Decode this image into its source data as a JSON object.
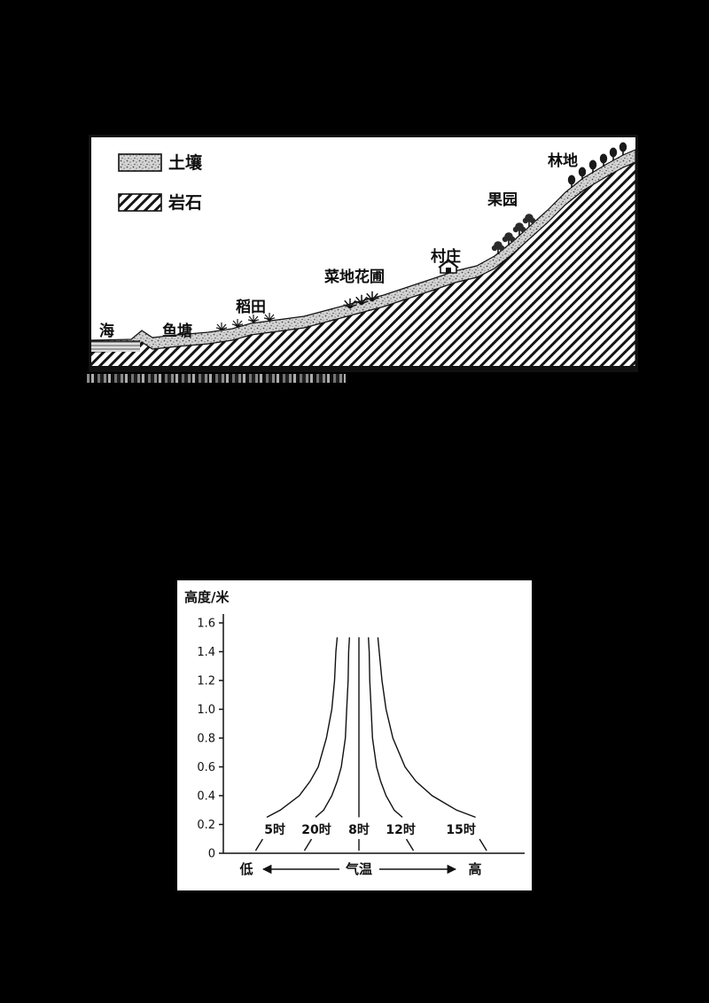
{
  "page": {
    "background": "#000000"
  },
  "land_use_diagram": {
    "legend": {
      "soil": "土壤",
      "rock": "岩石"
    },
    "labels": {
      "sea": "海",
      "fish_pond": "鱼塘",
      "rice_paddy": "稻田",
      "vegetable_flower_garden": "菜地花圃",
      "village": "村庄",
      "orchard": "果园",
      "forest": "林地"
    }
  },
  "chart_data": {
    "type": "line",
    "ylabel": "高度/米",
    "xlabel": "气温",
    "ylim": [
      0,
      1.6
    ],
    "grid": false,
    "y_ticks": [
      "0",
      "0.2",
      "0.4",
      "0.6",
      "0.8",
      "1.0",
      "1.2",
      "1.4",
      "1.6"
    ],
    "x_axis": {
      "left_label": "低",
      "center_label": "气温",
      "right_label": "高",
      "scale": "qualitative temperature axis, low to high, no numeric ticks"
    },
    "heights": [
      0.25,
      0.3,
      0.4,
      0.5,
      0.6,
      0.8,
      1.0,
      1.2,
      1.4,
      1.5
    ],
    "series": [
      {
        "name": "5时",
        "label_x_norm": 0.19,
        "temp_norm": [
          0.16,
          0.21,
          0.28,
          0.32,
          0.35,
          0.38,
          0.4,
          0.41,
          0.415,
          0.42
        ]
      },
      {
        "name": "20时",
        "label_x_norm": 0.343,
        "temp_norm": [
          0.34,
          0.37,
          0.4,
          0.42,
          0.435,
          0.45,
          0.455,
          0.46,
          0.462,
          0.465
        ]
      },
      {
        "name": "8时",
        "label_x_norm": 0.5,
        "temp_norm": [
          0.5,
          0.5,
          0.5,
          0.5,
          0.5,
          0.5,
          0.5,
          0.5,
          0.5,
          0.5
        ]
      },
      {
        "name": "12时",
        "label_x_norm": 0.654,
        "temp_norm": [
          0.66,
          0.63,
          0.6,
          0.58,
          0.565,
          0.55,
          0.545,
          0.54,
          0.538,
          0.535
        ]
      },
      {
        "name": "15时",
        "label_x_norm": 0.876,
        "temp_norm": [
          0.93,
          0.86,
          0.77,
          0.71,
          0.67,
          0.625,
          0.6,
          0.585,
          0.575,
          0.57
        ]
      }
    ]
  }
}
